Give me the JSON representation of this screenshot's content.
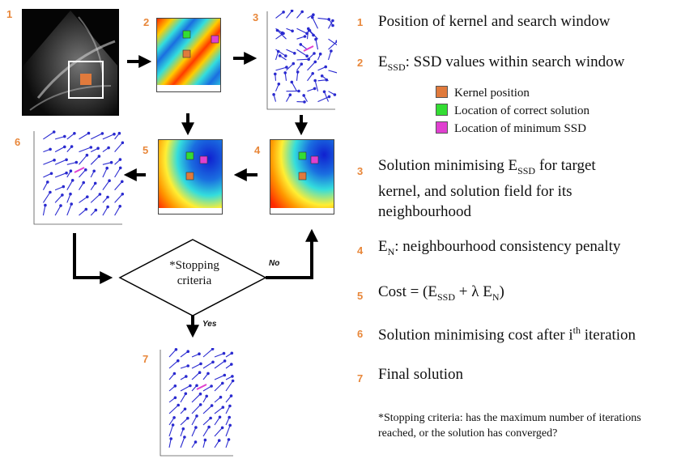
{
  "colors": {
    "accent_number": "#e8873a",
    "kernel": "#e07a3c",
    "correct": "#33dd33",
    "min_ssd": "#e040d0",
    "vector": "#2a2ad0",
    "arrow": "#000000"
  },
  "panel_numbers": [
    "1",
    "2",
    "3",
    "4",
    "5",
    "6",
    "7"
  ],
  "diamond": {
    "label_line1": "*Stopping",
    "label_line2": "criteria",
    "no_label": "No",
    "yes_label": "Yes"
  },
  "legend": {
    "kernel": "Kernel position",
    "correct": "Location of correct solution",
    "min_ssd": "Location of minimum SSD"
  },
  "steps": [
    {
      "num": "1",
      "text": "Position of kernel and search window"
    },
    {
      "num": "2",
      "prefix": "E",
      "sub": "SSD",
      "text": ": SSD values within search window"
    },
    {
      "num": "3",
      "text_a": "Solution minimising E",
      "sub": "SSD",
      "text_b": " for target",
      "line2": "kernel, and solution field for its",
      "line3": "neighbourhood"
    },
    {
      "num": "4",
      "prefix": "E",
      "sub": "N",
      "text": ": neighbourhood consistency penalty"
    },
    {
      "num": "5",
      "text_a": "Cost = (E",
      "sub1": "SSD",
      "text_b": " + λ E",
      "sub2": "N",
      "text_c": ")"
    },
    {
      "num": "6",
      "text_a": "Solution minimising cost after i",
      "sup": "th",
      "text_b": " iteration"
    },
    {
      "num": "7",
      "text": "Final solution"
    }
  ],
  "footnote": "*Stopping criteria: has the maximum number of iterations reached, or the solution has converged?"
}
